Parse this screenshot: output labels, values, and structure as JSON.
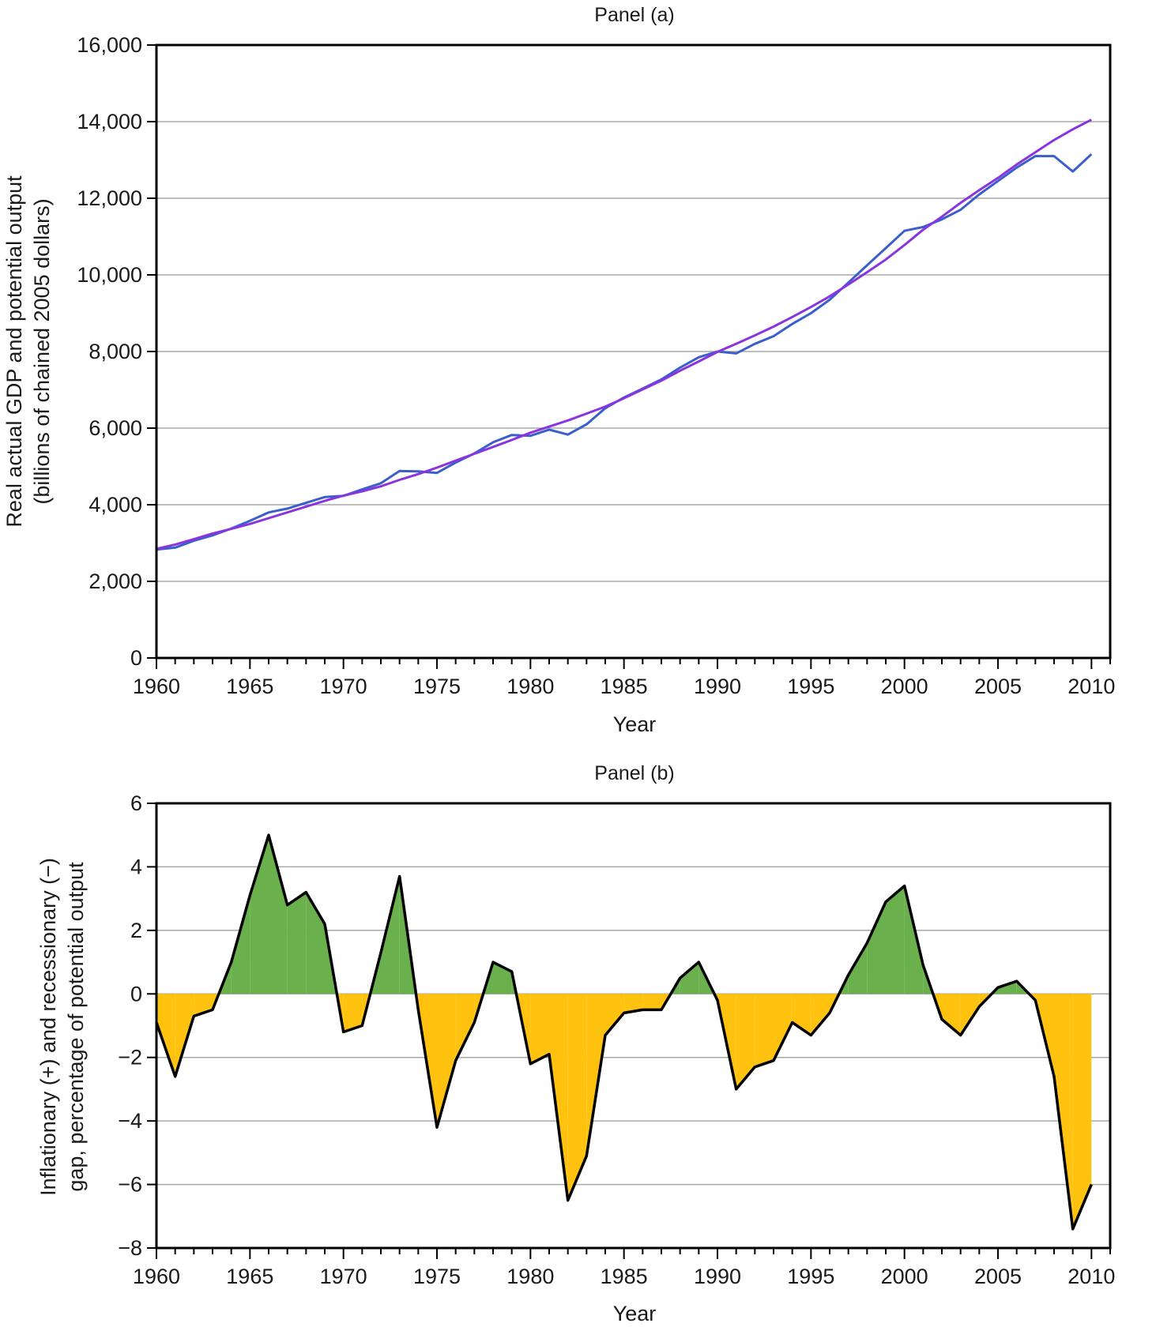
{
  "chart_data": [
    {
      "type": "line",
      "title": "Panel (a)",
      "xlabel": "Year",
      "ylabel_line1": "Real actual GDP and potential output",
      "ylabel_line2": "(billions of chained 2005 dollars)",
      "xlim": [
        1960,
        2011
      ],
      "ylim": [
        0,
        16000
      ],
      "x_ticks": [
        1960,
        1965,
        1970,
        1975,
        1980,
        1985,
        1990,
        1995,
        2000,
        2005,
        2010
      ],
      "x_tick_labels": [
        "1960",
        "1965",
        "1970",
        "1975",
        "1980",
        "1985",
        "1990",
        "1995",
        "2000",
        "2005",
        "2010"
      ],
      "y_ticks": [
        0,
        2000,
        4000,
        6000,
        8000,
        10000,
        12000,
        14000,
        16000
      ],
      "y_tick_labels": [
        "0",
        "2,000",
        "4,000",
        "6,000",
        "8,000",
        "10,000",
        "12,000",
        "14,000",
        "16,000"
      ],
      "grid": true,
      "series": [
        {
          "color": "#3a5fcd",
          "x": [
            1960,
            1961,
            1962,
            1963,
            1964,
            1965,
            1966,
            1967,
            1968,
            1969,
            1970,
            1971,
            1972,
            1973,
            1974,
            1975,
            1976,
            1977,
            1978,
            1979,
            1980,
            1981,
            1982,
            1983,
            1984,
            1985,
            1986,
            1987,
            1988,
            1989,
            1990,
            1991,
            1992,
            1993,
            1994,
            1995,
            1996,
            1997,
            1998,
            1999,
            2000,
            2001,
            2002,
            2003,
            2004,
            2005,
            2006,
            2007,
            2008,
            2009,
            2010
          ],
          "y": [
            2830,
            2880,
            3060,
            3200,
            3380,
            3580,
            3800,
            3900,
            4050,
            4200,
            4230,
            4400,
            4560,
            4880,
            4870,
            4830,
            5100,
            5340,
            5630,
            5820,
            5800,
            5960,
            5830,
            6100,
            6520,
            6800,
            7030,
            7270,
            7580,
            7850,
            8000,
            7950,
            8200,
            8400,
            8720,
            9000,
            9350,
            9800,
            10250,
            10700,
            11150,
            11250,
            11450,
            11700,
            12100,
            12450,
            12800,
            13100,
            13100,
            12700,
            13150
          ]
        },
        {
          "color": "#8a34e0",
          "x": [
            1960,
            1961,
            1962,
            1963,
            1964,
            1965,
            1966,
            1967,
            1968,
            1969,
            1970,
            1971,
            1972,
            1973,
            1974,
            1975,
            1976,
            1977,
            1978,
            1979,
            1980,
            1981,
            1982,
            1983,
            1984,
            1985,
            1986,
            1987,
            1988,
            1989,
            1990,
            1991,
            1992,
            1993,
            1994,
            1995,
            1996,
            1997,
            1998,
            1999,
            2000,
            2001,
            2002,
            2003,
            2004,
            2005,
            2006,
            2007,
            2008,
            2009,
            2010
          ],
          "y": [
            2850,
            2960,
            3100,
            3250,
            3370,
            3500,
            3650,
            3800,
            3950,
            4100,
            4240,
            4350,
            4480,
            4650,
            4800,
            4970,
            5150,
            5330,
            5510,
            5690,
            5880,
            6040,
            6200,
            6380,
            6560,
            6780,
            7010,
            7240,
            7500,
            7740,
            7990,
            8200,
            8420,
            8650,
            8900,
            9160,
            9440,
            9750,
            10070,
            10400,
            10780,
            11180,
            11520,
            11880,
            12210,
            12530,
            12880,
            13200,
            13520,
            13800,
            14050
          ]
        }
      ]
    },
    {
      "type": "area",
      "title": "Panel (b)",
      "xlabel": "Year",
      "ylabel_line1": "Inflationary (+) and recessionary (−)",
      "ylabel_line2": "gap, percentage of potential output",
      "xlim": [
        1960,
        2011
      ],
      "ylim": [
        -8,
        6
      ],
      "x_ticks": [
        1960,
        1965,
        1970,
        1975,
        1980,
        1985,
        1990,
        1995,
        2000,
        2005,
        2010
      ],
      "x_tick_labels": [
        "1960",
        "1965",
        "1970",
        "1975",
        "1980",
        "1985",
        "1990",
        "1995",
        "2000",
        "2005",
        "2010"
      ],
      "y_ticks": [
        -8,
        -6,
        -4,
        -2,
        0,
        2,
        4,
        6
      ],
      "y_tick_labels": [
        "−8",
        "−6",
        "−4",
        "−2",
        "0",
        "2",
        "4",
        "6"
      ],
      "grid": true,
      "positive_color": "#6ab04c",
      "negative_color": "#ffc20e",
      "line_color": "#000000",
      "x": [
        1960,
        1961,
        1962,
        1963,
        1964,
        1965,
        1966,
        1967,
        1968,
        1969,
        1970,
        1971,
        1972,
        1973,
        1974,
        1975,
        1976,
        1977,
        1978,
        1979,
        1980,
        1981,
        1982,
        1983,
        1984,
        1985,
        1986,
        1987,
        1988,
        1989,
        1990,
        1991,
        1992,
        1993,
        1994,
        1995,
        1996,
        1997,
        1998,
        1999,
        2000,
        2001,
        2002,
        2003,
        2004,
        2005,
        2006,
        2007,
        2008,
        2009,
        2010
      ],
      "values": [
        -0.9,
        -2.6,
        -0.7,
        -0.5,
        1.0,
        3.1,
        5.0,
        2.8,
        3.2,
        2.2,
        -1.2,
        -1.0,
        1.3,
        3.7,
        -0.5,
        -4.2,
        -2.1,
        -0.9,
        1.0,
        0.7,
        -2.2,
        -1.9,
        -6.5,
        -5.1,
        -1.3,
        -0.6,
        -0.5,
        -0.5,
        0.5,
        1.0,
        -0.2,
        -3.0,
        -2.3,
        -2.1,
        -0.9,
        -1.3,
        -0.6,
        0.6,
        1.6,
        2.9,
        3.4,
        0.9,
        -0.8,
        -1.3,
        -0.4,
        0.2,
        0.4,
        -0.2,
        -2.6,
        -7.4,
        -6.0
      ]
    }
  ]
}
